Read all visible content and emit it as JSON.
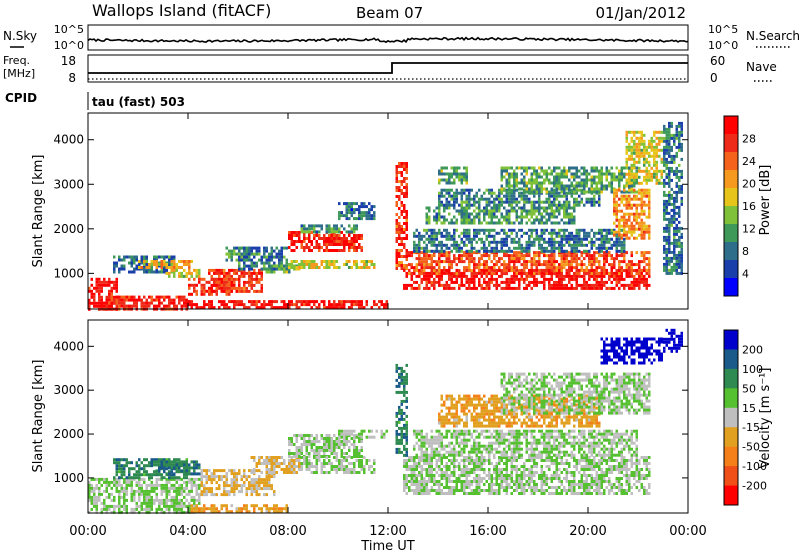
{
  "header": {
    "station": "Wallops Island (fitACF)",
    "beam": "Beam 07",
    "date": "01/Jan/2012"
  },
  "top_panels": {
    "nsky_label": "N.Sky",
    "nsearch_label": "N.Search",
    "noise_ticks_left": [
      "10^5",
      "10^0"
    ],
    "noise_ticks_right": [
      "10^5",
      "10^0"
    ],
    "freq_label_line1": "Freq.",
    "freq_label_line2": "[MHz]",
    "freq_ticks": [
      "18",
      "8"
    ],
    "nave_label": "Nave",
    "nave_ticks": [
      "60",
      "0"
    ],
    "cpid_label": "CPID",
    "cpid_value": "tau (fast) 503"
  },
  "chart_data": [
    {
      "type": "heatmap",
      "panel": "power",
      "ylabel": "Slant Range [km]",
      "xlabel": "Time UT",
      "x_ticks": [
        "00:00",
        "04:00",
        "08:00",
        "12:00",
        "16:00",
        "20:00",
        "00:00"
      ],
      "x_range_hours": [
        0,
        24
      ],
      "y_ticks": [
        1000,
        2000,
        3000,
        4000
      ],
      "ylim": [
        200,
        4600
      ],
      "colorbar": {
        "label": "Power [dB]",
        "ticks": [
          4,
          8,
          12,
          16,
          20,
          24,
          28
        ],
        "colors": [
          "#0000ff",
          "#1a3faa",
          "#2e6e8a",
          "#3f9a5a",
          "#7fc23a",
          "#e6c419",
          "#f59a1e",
          "#f4621c",
          "#ee2a18",
          "#ff0000"
        ]
      },
      "regions": [
        {
          "t0": 0.0,
          "t1": 1.2,
          "r0": 220,
          "r1": 900,
          "value": 30
        },
        {
          "t0": 0.5,
          "t1": 4.0,
          "r0": 220,
          "r1": 500,
          "value": 29
        },
        {
          "t0": 1.0,
          "t1": 3.5,
          "r0": 1000,
          "r1": 1400,
          "value": 10
        },
        {
          "t0": 2.0,
          "t1": 4.2,
          "r0": 1100,
          "r1": 1300,
          "value": 20
        },
        {
          "t0": 3.0,
          "t1": 4.5,
          "r0": 900,
          "r1": 1100,
          "value": 18
        },
        {
          "t0": 4.0,
          "t1": 5.8,
          "r0": 550,
          "r1": 900,
          "value": 28
        },
        {
          "t0": 4.8,
          "t1": 7.0,
          "r0": 600,
          "r1": 1100,
          "value": 27
        },
        {
          "t0": 5.5,
          "t1": 6.5,
          "r0": 1300,
          "r1": 1600,
          "value": 12
        },
        {
          "t0": 6.0,
          "t1": 8.0,
          "r0": 1100,
          "r1": 1600,
          "value": 10
        },
        {
          "t0": 7.0,
          "t1": 8.5,
          "r0": 1000,
          "r1": 1200,
          "value": 14
        },
        {
          "t0": 8.0,
          "t1": 11.0,
          "r0": 1500,
          "r1": 1950,
          "value": 29
        },
        {
          "t0": 8.5,
          "t1": 10.8,
          "r0": 1900,
          "r1": 2100,
          "value": 12
        },
        {
          "t0": 8.0,
          "t1": 11.5,
          "r0": 1100,
          "r1": 1300,
          "value": 18
        },
        {
          "t0": 10.0,
          "t1": 11.5,
          "r0": 2200,
          "r1": 2600,
          "value": 9
        },
        {
          "t0": 4.0,
          "t1": 12.0,
          "r0": 220,
          "r1": 400,
          "value": 30
        },
        {
          "t0": 12.3,
          "t1": 12.8,
          "r0": 1100,
          "r1": 3500,
          "value": 27
        },
        {
          "t0": 12.6,
          "t1": 22.5,
          "r0": 650,
          "r1": 1100,
          "value": 30
        },
        {
          "t0": 12.8,
          "t1": 22.5,
          "r0": 1000,
          "r1": 1500,
          "value": 26
        },
        {
          "t0": 13.0,
          "t1": 21.5,
          "r0": 1500,
          "r1": 2000,
          "value": 10
        },
        {
          "t0": 13.5,
          "t1": 19.5,
          "r0": 2100,
          "r1": 2500,
          "value": 12
        },
        {
          "t0": 14.0,
          "t1": 20.5,
          "r0": 2500,
          "r1": 2900,
          "value": 11
        },
        {
          "t0": 14.0,
          "t1": 15.2,
          "r0": 3000,
          "r1": 3400,
          "value": 13
        },
        {
          "t0": 16.5,
          "t1": 22.0,
          "r0": 2800,
          "r1": 3400,
          "value": 13
        },
        {
          "t0": 21.0,
          "t1": 22.5,
          "r0": 1800,
          "r1": 2900,
          "value": 22
        },
        {
          "t0": 21.5,
          "t1": 23.0,
          "r0": 3000,
          "r1": 4200,
          "value": 18
        },
        {
          "t0": 23.0,
          "t1": 23.8,
          "r0": 1000,
          "r1": 4400,
          "value": 10
        }
      ]
    },
    {
      "type": "heatmap",
      "panel": "velocity",
      "ylabel": "Slant Range [km]",
      "xlabel": "Time UT",
      "x_ticks": [
        "00:00",
        "04:00",
        "08:00",
        "12:00",
        "16:00",
        "20:00",
        "00:00"
      ],
      "x_range_hours": [
        0,
        24
      ],
      "y_ticks": [
        1000,
        2000,
        3000,
        4000
      ],
      "ylim": [
        200,
        4600
      ],
      "colorbar": {
        "label": "Velocity [m s⁻¹]",
        "ticks": [
          200,
          100,
          50,
          15,
          -15,
          -50,
          -100,
          -200
        ],
        "colors": [
          "#0000cc",
          "#1a5a8a",
          "#2e8a50",
          "#55c030",
          "#bfbfbf",
          "#e2a020",
          "#f5801a",
          "#f05018",
          "#ff0000"
        ]
      },
      "regions": [
        {
          "t0": 0.0,
          "t1": 4.5,
          "r0": 220,
          "r1": 1000,
          "value": 0
        },
        {
          "t0": 1.0,
          "t1": 4.0,
          "r0": 1000,
          "r1": 1450,
          "value": 60
        },
        {
          "t0": 2.5,
          "t1": 4.5,
          "r0": 1100,
          "r1": 1400,
          "value": 70
        },
        {
          "t0": 4.0,
          "t1": 8.0,
          "r0": 220,
          "r1": 400,
          "value": -60
        },
        {
          "t0": 4.5,
          "t1": 7.5,
          "r0": 600,
          "r1": 1200,
          "value": -40
        },
        {
          "t0": 6.5,
          "t1": 8.5,
          "r0": 1100,
          "r1": 1500,
          "value": -30
        },
        {
          "t0": 8.0,
          "t1": 11.0,
          "r0": 1500,
          "r1": 2000,
          "value": 0
        },
        {
          "t0": 8.5,
          "t1": 11.5,
          "r0": 1100,
          "r1": 1500,
          "value": 0
        },
        {
          "t0": 10.0,
          "t1": 12.0,
          "r0": 1900,
          "r1": 2100,
          "value": 0
        },
        {
          "t0": 12.3,
          "t1": 12.8,
          "r0": 1500,
          "r1": 3600,
          "value": 60
        },
        {
          "t0": 12.6,
          "t1": 22.5,
          "r0": 650,
          "r1": 1500,
          "value": 0
        },
        {
          "t0": 13.0,
          "t1": 22.0,
          "r0": 1500,
          "r1": 2100,
          "value": 0
        },
        {
          "t0": 14.0,
          "t1": 20.5,
          "r0": 2200,
          "r1": 2900,
          "value": -60
        },
        {
          "t0": 16.5,
          "t1": 22.5,
          "r0": 2500,
          "r1": 3400,
          "value": 0
        },
        {
          "t0": 20.5,
          "t1": 23.0,
          "r0": 3600,
          "r1": 4200,
          "value": 220
        },
        {
          "t0": 23.0,
          "t1": 23.8,
          "r0": 3900,
          "r1": 4400,
          "value": 220
        }
      ]
    }
  ]
}
